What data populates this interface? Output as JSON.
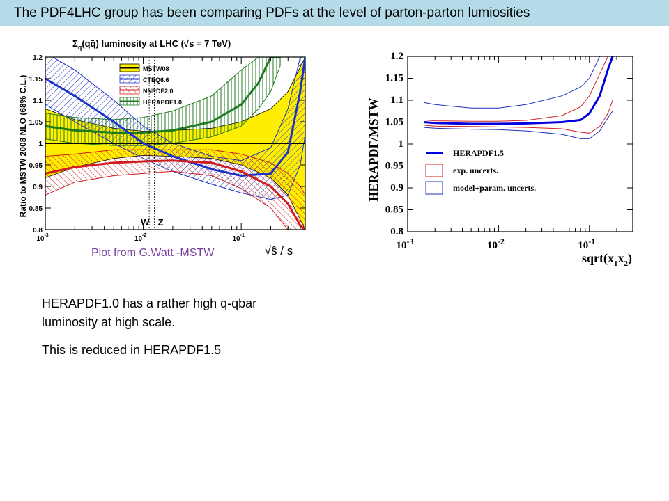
{
  "slide": {
    "title": "The PDF4LHC group has been comparing PDFs at the level of parton-parton lumiosities",
    "caption": "Plot from G.Watt -MSTW",
    "note1": "HERAPDF1.0 has a rather high q-qbar luminosity at high scale.",
    "note2": "This is reduced in HERAPDF1.5",
    "colors": {
      "banner": "#b5dbe8",
      "caption": "#7b3fa0"
    }
  },
  "chart_data": [
    {
      "type": "line",
      "title_parts": {
        "sigma": "Σ",
        "sub": "q",
        "main": "(qq̄) luminosity at LHC (",
        "sqrt": "√",
        "tail": "s = 7 TeV)"
      },
      "ylabel": "Ratio to MSTW 2008 NLO (68% C.L.)",
      "xlabel": "√ŝ / s",
      "x_scale": "log",
      "xlim": [
        0.001,
        0.45
      ],
      "ylim": [
        0.8,
        1.2
      ],
      "y_ticks": [
        "0.8",
        "0.85",
        "0.9",
        "0.95",
        "1",
        "1.05",
        "1.1",
        "1.15",
        "1.2"
      ],
      "x_ticks": [
        {
          "label": "10",
          "exp": "-3",
          "v": 0.001
        },
        {
          "label": "10",
          "exp": "-2",
          "v": 0.01
        },
        {
          "label": "10",
          "exp": "-1",
          "v": 0.1
        }
      ],
      "markers": [
        {
          "label": "W",
          "x": 0.0115
        },
        {
          "label": "Z",
          "x": 0.013
        }
      ],
      "legend_placement": "top-left",
      "series": [
        {
          "name": "MSTW08",
          "color": "#000000",
          "band_color": "#ffee00",
          "x": [
            0.001,
            0.002,
            0.005,
            0.01,
            0.02,
            0.05,
            0.1,
            0.2,
            0.3,
            0.45
          ],
          "central": [
            1,
            1,
            1,
            1,
            1,
            1,
            1,
            1,
            1,
            1
          ],
          "upper": [
            1.08,
            1.055,
            1.035,
            1.028,
            1.03,
            1.035,
            1.05,
            1.08,
            1.12,
            1.2
          ],
          "lower": [
            0.92,
            0.945,
            0.965,
            0.972,
            0.97,
            0.965,
            0.95,
            0.92,
            0.88,
            0.8
          ]
        },
        {
          "name": "CTEQ6.6",
          "color": "#1a33c8",
          "x": [
            0.001,
            0.002,
            0.005,
            0.01,
            0.02,
            0.05,
            0.1,
            0.2,
            0.3,
            0.4,
            0.45
          ],
          "central": [
            1.15,
            1.11,
            1.05,
            1.0,
            0.97,
            0.94,
            0.925,
            0.93,
            0.98,
            1.12,
            1.2
          ],
          "upper": [
            1.21,
            1.17,
            1.1,
            1.04,
            1.0,
            0.97,
            0.96,
            0.99,
            1.08,
            1.2,
            1.2
          ],
          "lower": [
            1.09,
            1.05,
            1.0,
            0.965,
            0.935,
            0.905,
            0.885,
            0.87,
            0.88,
            0.95,
            1.02
          ]
        },
        {
          "name": "NNPDF2.0",
          "color": "#d01c1c",
          "x": [
            0.001,
            0.002,
            0.005,
            0.01,
            0.02,
            0.05,
            0.1,
            0.2,
            0.3,
            0.4,
            0.45
          ],
          "central": [
            0.93,
            0.945,
            0.955,
            0.958,
            0.96,
            0.955,
            0.935,
            0.9,
            0.86,
            0.81,
            0.8
          ],
          "upper": [
            0.97,
            0.975,
            0.985,
            0.985,
            0.985,
            0.985,
            0.975,
            0.955,
            0.93,
            0.9,
            0.88
          ],
          "lower": [
            0.88,
            0.91,
            0.925,
            0.93,
            0.935,
            0.925,
            0.895,
            0.85,
            0.8,
            0.8,
            0.8
          ]
        },
        {
          "name": "HERAPDF1.0",
          "color": "#1e7a1e",
          "x": [
            0.001,
            0.002,
            0.005,
            0.01,
            0.02,
            0.05,
            0.1,
            0.15,
            0.2,
            0.25
          ],
          "central": [
            1.04,
            1.03,
            1.025,
            1.025,
            1.03,
            1.05,
            1.09,
            1.14,
            1.2,
            1.2
          ],
          "upper": [
            1.07,
            1.06,
            1.055,
            1.06,
            1.075,
            1.11,
            1.17,
            1.2,
            1.2,
            1.2
          ],
          "lower": [
            1.01,
            1.0,
            0.995,
            0.995,
            1.0,
            1.015,
            1.04,
            1.08,
            1.12,
            1.18
          ]
        }
      ]
    },
    {
      "type": "line",
      "ylabel": "HERAPDF/MSTW",
      "xlabel_parts": {
        "main": "sqrt(x",
        "s1": "1",
        "mid": "x",
        "s2": "2",
        "end": ")"
      },
      "x_scale": "log",
      "xlim": [
        0.001,
        0.3
      ],
      "ylim": [
        0.8,
        1.2
      ],
      "y_ticks": [
        "0.8",
        "0.85",
        "0.9",
        "0.95",
        "1",
        "1.05",
        "1.1",
        "1.15",
        "1.2"
      ],
      "x_ticks": [
        {
          "label": "10",
          "exp": "-3",
          "v": 0.001
        },
        {
          "label": "10",
          "exp": "-2",
          "v": 0.01
        },
        {
          "label": "10",
          "exp": "-1",
          "v": 0.1
        }
      ],
      "legend": [
        {
          "name": "HERAPDF1.5",
          "kind": "line",
          "color": "#0000e0"
        },
        {
          "name": "exp. uncerts.",
          "kind": "box",
          "color": "#d02020"
        },
        {
          "name": "model+param. uncerts.",
          "kind": "box",
          "color": "#2030c0"
        }
      ],
      "legend_placement": "center",
      "series": [
        {
          "name": "HERAPDF1.5",
          "color": "#0000e0",
          "x": [
            0.0015,
            0.002,
            0.005,
            0.01,
            0.02,
            0.05,
            0.08,
            0.1,
            0.13,
            0.16,
            0.18
          ],
          "central": [
            1.05,
            1.048,
            1.046,
            1.046,
            1.047,
            1.05,
            1.055,
            1.07,
            1.11,
            1.17,
            1.2
          ],
          "exp_upper": [
            1.055,
            1.053,
            1.052,
            1.052,
            1.054,
            1.065,
            1.085,
            1.11,
            1.16,
            1.2,
            1.2
          ],
          "exp_lower": [
            1.043,
            1.041,
            1.04,
            1.039,
            1.038,
            1.035,
            1.027,
            1.025,
            1.04,
            1.07,
            1.1
          ],
          "model_upper": [
            1.095,
            1.09,
            1.082,
            1.082,
            1.09,
            1.11,
            1.13,
            1.15,
            1.2,
            1.2,
            1.2
          ],
          "model_lower": [
            1.038,
            1.036,
            1.034,
            1.033,
            1.03,
            1.022,
            1.012,
            1.012,
            1.03,
            1.06,
            1.075
          ]
        }
      ]
    }
  ]
}
